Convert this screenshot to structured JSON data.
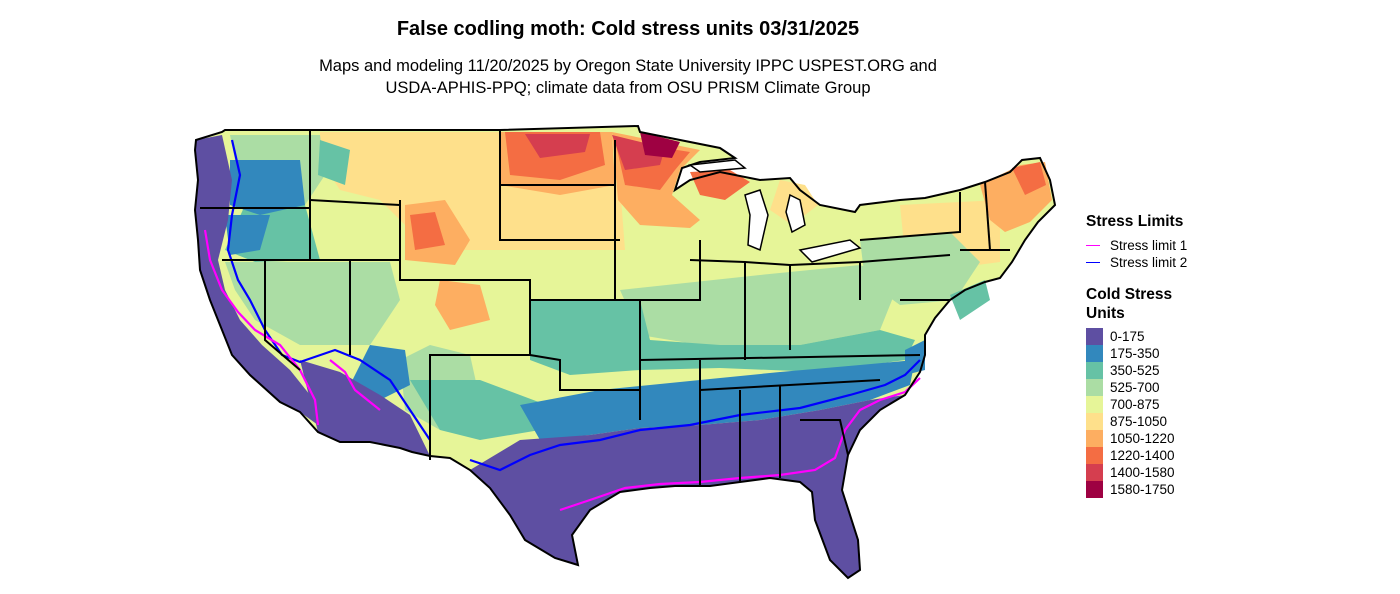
{
  "title": "False codling moth: Cold stress units 03/31/2025",
  "subtitle_line1": "Maps and modeling 11/20/2025 by Oregon State University IPPC USPEST.ORG and",
  "subtitle_line2": "USDA-APHIS-PPQ; climate data from OSU PRISM Climate Group",
  "legend": {
    "limits_title": "Stress Limits",
    "limits": [
      {
        "label": "Stress limit 1",
        "color": "#ff00ff"
      },
      {
        "label": "Stress limit 2",
        "color": "#0000ff"
      }
    ],
    "units_title": "Cold Stress Units",
    "bins": [
      {
        "label": "0-175",
        "color": "#5e4fa2"
      },
      {
        "label": "175-350",
        "color": "#3288bd"
      },
      {
        "label": "350-525",
        "color": "#66c2a5"
      },
      {
        "label": "525-700",
        "color": "#abdda4"
      },
      {
        "label": "700-875",
        "color": "#e6f598"
      },
      {
        "label": "875-1050",
        "color": "#fee08b"
      },
      {
        "label": "1050-1220",
        "color": "#fdae61"
      },
      {
        "label": "1220-1400",
        "color": "#f46d43"
      },
      {
        "label": "1400-1580",
        "color": "#d53e4f"
      },
      {
        "label": "1580-1750",
        "color": "#9e0142"
      }
    ]
  }
}
